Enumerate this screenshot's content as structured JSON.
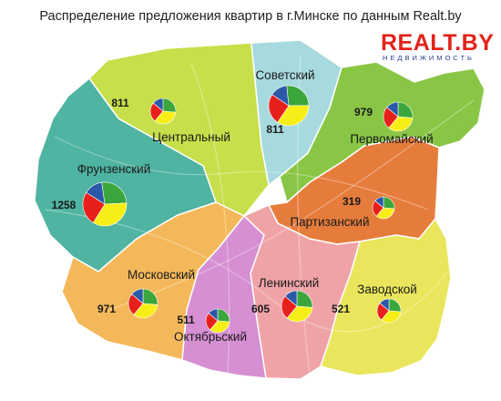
{
  "title": "Распределение предложения квартир в г.Минске по данным  Realt.by",
  "logo": {
    "main": "REALT.BY",
    "sub": "НЕДВИЖИМОСТЬ"
  },
  "colors": {
    "red": "#e8201c",
    "yellow": "#f7ee18",
    "green": "#3aa63b",
    "blue": "#2b59a8",
    "frunzensky": "#4fb4a1",
    "tsentralny": "#c7df4a",
    "sovetsky": "#a7dadf",
    "pervomaisky": "#8ac646",
    "partizansky": "#e67c3c",
    "zavodskoy": "#e9e65d",
    "leninsky": "#f0a3a7",
    "oktyabrsky": "#d58fd2",
    "moskovsky": "#f4b85a"
  },
  "districts": [
    {
      "id": "frunzensky",
      "name": "Фрунзенский",
      "count": "1258"
    },
    {
      "id": "tsentralny",
      "name": "Центральный",
      "count": "811"
    },
    {
      "id": "sovetsky",
      "name": "Советский",
      "count": "811"
    },
    {
      "id": "pervomaisky",
      "name": "Первомайский",
      "count": "979"
    },
    {
      "id": "partizansky",
      "name": "Партизанский",
      "count": "319"
    },
    {
      "id": "moskovsky",
      "name": "Московский",
      "count": "971"
    },
    {
      "id": "oktyabrsky",
      "name": "Октябрьский",
      "count": "511"
    },
    {
      "id": "leninsky",
      "name": "Ленинский",
      "count": "605"
    },
    {
      "id": "zavodskoy",
      "name": "Заводской",
      "count": "521"
    }
  ]
}
